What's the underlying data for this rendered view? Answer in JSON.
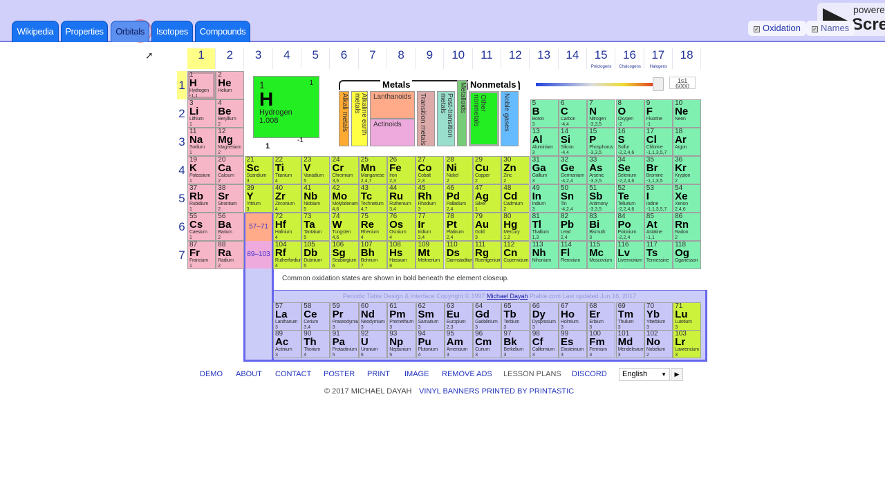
{
  "tabs": [
    {
      "label": "Wikipedia"
    },
    {
      "label": "Properties"
    },
    {
      "label": "Orbitals",
      "active": true
    },
    {
      "label": "Isotopes"
    },
    {
      "label": "Compounds"
    }
  ],
  "toggles": [
    {
      "label": "Oxidation",
      "checked": true
    },
    {
      "label": "Names",
      "checked": true
    }
  ],
  "watermark": {
    "line1": "powere",
    "line2": "Scre"
  },
  "groups": [
    "1",
    "2",
    "3",
    "4",
    "5",
    "6",
    "7",
    "8",
    "9",
    "10",
    "11",
    "12",
    "13",
    "14",
    "15",
    "16",
    "17",
    "18"
  ],
  "group_subtitles": {
    "15": "Pnictogens",
    "16": "Chalcogens",
    "17": "Halogens"
  },
  "periods": [
    "1",
    "2",
    "3",
    "4",
    "5",
    "6",
    "7"
  ],
  "highlight": {
    "group": "1",
    "period": "1"
  },
  "closeup": {
    "number": "1",
    "electrons": "1",
    "symbol": "H",
    "name": "Hydrogen",
    "weight": "1.008",
    "ox_common": "1",
    "ox_other": "-1"
  },
  "legend": {
    "metals": "Metals",
    "nonmetals": "Nonmetals",
    "categories": [
      "Alkali metals",
      "Alkaline earth metals",
      "Lanthanoids",
      "Actinoids",
      "Transition metals",
      "Post-transition metals",
      "Metalloids",
      "Other nonmetals",
      "Noble gases"
    ],
    "colors": {
      "alkali": "#ffaa33",
      "alkaline": "#ffff44",
      "lanthanoids": "#ffaa88",
      "actinoids": "#eeaadd",
      "transition": "#ddaaaa",
      "post": "#99ddcc",
      "metalloids": "#77cc77",
      "other": "#22ee22",
      "noble": "#66bbff"
    }
  },
  "slider": {
    "orbital": "1s1",
    "value": "6000"
  },
  "block_colors": {
    "s": "#f7b6c8",
    "d": "#ccf23c",
    "p": "#7ff0b0",
    "f": "#c8c6f7"
  },
  "elements": [
    [
      "1",
      "H",
      "Hydrogen",
      "-1,1",
      1,
      1,
      "s"
    ],
    [
      "2",
      "He",
      "Helium",
      "",
      1,
      2,
      "s"
    ],
    [
      "3",
      "Li",
      "Lithium",
      "1",
      2,
      1,
      "s"
    ],
    [
      "4",
      "Be",
      "Beryllium",
      "2",
      2,
      2,
      "s"
    ],
    [
      "5",
      "B",
      "Boron",
      "3",
      2,
      13,
      "p"
    ],
    [
      "6",
      "C",
      "Carbon",
      "-4,4",
      2,
      14,
      "p"
    ],
    [
      "7",
      "N",
      "Nitrogen",
      "-3,3,5",
      2,
      15,
      "p"
    ],
    [
      "8",
      "O",
      "Oxygen",
      "-2",
      2,
      16,
      "p"
    ],
    [
      "9",
      "F",
      "Fluorine",
      "-1",
      2,
      17,
      "p"
    ],
    [
      "10",
      "Ne",
      "Neon",
      "",
      2,
      18,
      "p"
    ],
    [
      "11",
      "Na",
      "Sodium",
      "1",
      3,
      1,
      "s"
    ],
    [
      "12",
      "Mg",
      "Magnesium",
      "2",
      3,
      2,
      "s"
    ],
    [
      "13",
      "Al",
      "Aluminium",
      "3",
      3,
      13,
      "p"
    ],
    [
      "14",
      "Si",
      "Silicon",
      "-4,4",
      3,
      14,
      "p"
    ],
    [
      "15",
      "P",
      "Phosphorus",
      "-3,3,5",
      3,
      15,
      "p"
    ],
    [
      "16",
      "S",
      "Sulfur",
      "-2,2,4,6",
      3,
      16,
      "p"
    ],
    [
      "17",
      "Cl",
      "Chlorine",
      "-1,1,3,5,7",
      3,
      17,
      "p"
    ],
    [
      "18",
      "Ar",
      "Argon",
      "",
      3,
      18,
      "p"
    ],
    [
      "19",
      "K",
      "Potassium",
      "1",
      4,
      1,
      "s"
    ],
    [
      "20",
      "Ca",
      "Calcium",
      "2",
      4,
      2,
      "s"
    ],
    [
      "21",
      "Sc",
      "Scandium",
      "3",
      4,
      3,
      "d"
    ],
    [
      "22",
      "Ti",
      "Titanium",
      "4",
      4,
      4,
      "d"
    ],
    [
      "23",
      "V",
      "Vanadium",
      "5",
      4,
      5,
      "d"
    ],
    [
      "24",
      "Cr",
      "Chromium",
      "3,6",
      4,
      6,
      "d"
    ],
    [
      "25",
      "Mn",
      "Manganese",
      "2,4,7",
      4,
      7,
      "d"
    ],
    [
      "26",
      "Fe",
      "Iron",
      "2,3",
      4,
      8,
      "d"
    ],
    [
      "27",
      "Co",
      "Cobalt",
      "2,3",
      4,
      9,
      "d"
    ],
    [
      "28",
      "Ni",
      "Nickel",
      "2",
      4,
      10,
      "d"
    ],
    [
      "29",
      "Cu",
      "Copper",
      "2",
      4,
      11,
      "d"
    ],
    [
      "30",
      "Zn",
      "Zinc",
      "2",
      4,
      12,
      "d"
    ],
    [
      "31",
      "Ga",
      "Gallium",
      "3",
      4,
      13,
      "p"
    ],
    [
      "32",
      "Ge",
      "Germanium",
      "-4,2,4",
      4,
      14,
      "p"
    ],
    [
      "33",
      "As",
      "Arsenic",
      "-3,3,5",
      4,
      15,
      "p"
    ],
    [
      "34",
      "Se",
      "Selenium",
      "-2,2,4,6",
      4,
      16,
      "p"
    ],
    [
      "35",
      "Br",
      "Bromine",
      "-1,1,3,5",
      4,
      17,
      "p"
    ],
    [
      "36",
      "Kr",
      "Krypton",
      "2",
      4,
      18,
      "p"
    ],
    [
      "37",
      "Rb",
      "Rubidium",
      "1",
      5,
      1,
      "s"
    ],
    [
      "38",
      "Sr",
      "Strontium",
      "2",
      5,
      2,
      "s"
    ],
    [
      "39",
      "Y",
      "Yttrium",
      "3",
      5,
      3,
      "d"
    ],
    [
      "40",
      "Zr",
      "Zirconium",
      "4",
      5,
      4,
      "d"
    ],
    [
      "41",
      "Nb",
      "Niobium",
      "5",
      5,
      5,
      "d"
    ],
    [
      "42",
      "Mo",
      "Molybdenum",
      "4,6",
      5,
      6,
      "d"
    ],
    [
      "43",
      "Tc",
      "Technetium",
      "4,7",
      5,
      7,
      "d"
    ],
    [
      "44",
      "Ru",
      "Ruthenium",
      "3,4",
      5,
      8,
      "d"
    ],
    [
      "45",
      "Rh",
      "Rhodium",
      "3",
      5,
      9,
      "d"
    ],
    [
      "46",
      "Pd",
      "Palladium",
      "2,4",
      5,
      10,
      "d"
    ],
    [
      "47",
      "Ag",
      "Silver",
      "1",
      5,
      11,
      "d"
    ],
    [
      "48",
      "Cd",
      "Cadmium",
      "2",
      5,
      12,
      "d"
    ],
    [
      "49",
      "In",
      "Indium",
      "3",
      5,
      13,
      "p"
    ],
    [
      "50",
      "Sn",
      "Tin",
      "-4,2,4",
      5,
      14,
      "p"
    ],
    [
      "51",
      "Sb",
      "Antimony",
      "-3,3,5",
      5,
      15,
      "p"
    ],
    [
      "52",
      "Te",
      "Tellurium",
      "-2,2,4,6",
      5,
      16,
      "p"
    ],
    [
      "53",
      "I",
      "Iodine",
      "-1,1,3,5,7",
      5,
      17,
      "p"
    ],
    [
      "54",
      "Xe",
      "Xenon",
      "2,4,6",
      5,
      18,
      "p"
    ],
    [
      "55",
      "Cs",
      "Caesium",
      "1",
      6,
      1,
      "s"
    ],
    [
      "56",
      "Ba",
      "Barium",
      "2",
      6,
      2,
      "s"
    ],
    [
      "72",
      "Hf",
      "Hafnium",
      "4",
      6,
      4,
      "d"
    ],
    [
      "73",
      "Ta",
      "Tantalum",
      "5",
      6,
      5,
      "d"
    ],
    [
      "74",
      "W",
      "Tungsten",
      "4,6",
      6,
      6,
      "d"
    ],
    [
      "75",
      "Re",
      "Rhenium",
      "4",
      6,
      7,
      "d"
    ],
    [
      "76",
      "Os",
      "Osmium",
      "4",
      6,
      8,
      "d"
    ],
    [
      "77",
      "Ir",
      "Iridium",
      "3,4",
      6,
      9,
      "d"
    ],
    [
      "78",
      "Pt",
      "Platinum",
      "2,4",
      6,
      10,
      "d"
    ],
    [
      "79",
      "Au",
      "Gold",
      "3",
      6,
      11,
      "d"
    ],
    [
      "80",
      "Hg",
      "Mercury",
      "1,2",
      6,
      12,
      "d"
    ],
    [
      "81",
      "Tl",
      "Thallium",
      "1,3",
      6,
      13,
      "p"
    ],
    [
      "82",
      "Pb",
      "Lead",
      "2,4",
      6,
      14,
      "p"
    ],
    [
      "83",
      "Bi",
      "Bismuth",
      "3",
      6,
      15,
      "p"
    ],
    [
      "84",
      "Po",
      "Polonium",
      "-2,2,4",
      6,
      16,
      "p"
    ],
    [
      "85",
      "At",
      "Astatine",
      "-1,1",
      6,
      17,
      "p"
    ],
    [
      "86",
      "Rn",
      "Radon",
      "2",
      6,
      18,
      "p"
    ],
    [
      "87",
      "Fr",
      "Francium",
      "1",
      7,
      1,
      "s"
    ],
    [
      "88",
      "Ra",
      "Radium",
      "2",
      7,
      2,
      "s"
    ],
    [
      "104",
      "Rf",
      "Rutherfordium",
      "4",
      7,
      4,
      "d"
    ],
    [
      "105",
      "Db",
      "Dubnium",
      "5",
      7,
      5,
      "d"
    ],
    [
      "106",
      "Sg",
      "Seaborgium",
      "6",
      7,
      6,
      "d"
    ],
    [
      "107",
      "Bh",
      "Bohrium",
      "7",
      7,
      7,
      "d"
    ],
    [
      "108",
      "Hs",
      "Hassium",
      "8",
      7,
      8,
      "d"
    ],
    [
      "109",
      "Mt",
      "Meitnerium",
      "",
      7,
      9,
      "d"
    ],
    [
      "110",
      "Ds",
      "Darmstadtium",
      "",
      7,
      10,
      "d"
    ],
    [
      "111",
      "Rg",
      "Roentgenium",
      "",
      7,
      11,
      "d"
    ],
    [
      "112",
      "Cn",
      "Copernicium",
      "",
      7,
      12,
      "d"
    ],
    [
      "113",
      "Nh",
      "Nihonium",
      "",
      7,
      13,
      "p"
    ],
    [
      "114",
      "Fl",
      "Flerovium",
      "",
      7,
      14,
      "p"
    ],
    [
      "115",
      "Mc",
      "Moscovium",
      "",
      7,
      15,
      "p"
    ],
    [
      "116",
      "Lv",
      "Livermorium",
      "",
      7,
      16,
      "p"
    ],
    [
      "117",
      "Ts",
      "Tennessine",
      "",
      7,
      17,
      "p"
    ],
    [
      "118",
      "Og",
      "Oganesson",
      "",
      7,
      18,
      "p"
    ]
  ],
  "lanthanides": [
    [
      "57",
      "La",
      "Lanthanum",
      "3"
    ],
    [
      "58",
      "Ce",
      "Cerium",
      "3,4"
    ],
    [
      "59",
      "Pr",
      "Praseodymium",
      "3"
    ],
    [
      "60",
      "Nd",
      "Neodymium",
      "3"
    ],
    [
      "61",
      "Pm",
      "Promethium",
      "3"
    ],
    [
      "62",
      "Sm",
      "Samarium",
      "3"
    ],
    [
      "63",
      "Eu",
      "Europium",
      "2,3"
    ],
    [
      "64",
      "Gd",
      "Gadolinium",
      "3"
    ],
    [
      "65",
      "Tb",
      "Terbium",
      "3"
    ],
    [
      "66",
      "Dy",
      "Dysprosium",
      "3"
    ],
    [
      "67",
      "Ho",
      "Holmium",
      "3"
    ],
    [
      "68",
      "Er",
      "Erbium",
      "3"
    ],
    [
      "69",
      "Tm",
      "Thulium",
      "3"
    ],
    [
      "70",
      "Yb",
      "Ytterbium",
      "3"
    ],
    [
      "71",
      "Lu",
      "Lutetium",
      "3"
    ]
  ],
  "actinides": [
    [
      "89",
      "Ac",
      "Actinium",
      "3"
    ],
    [
      "90",
      "Th",
      "Thorium",
      "4"
    ],
    [
      "91",
      "Pa",
      "Protactinium",
      "5"
    ],
    [
      "92",
      "U",
      "Uranium",
      "6"
    ],
    [
      "93",
      "Np",
      "Neptunium",
      "5"
    ],
    [
      "94",
      "Pu",
      "Plutonium",
      "4"
    ],
    [
      "95",
      "Am",
      "Americium",
      "3"
    ],
    [
      "96",
      "Cm",
      "Curium",
      "3"
    ],
    [
      "97",
      "Bk",
      "Berkelium",
      "3"
    ],
    [
      "98",
      "Cf",
      "Californium",
      "3"
    ],
    [
      "99",
      "Es",
      "Einsteinium",
      "3"
    ],
    [
      "100",
      "Fm",
      "Fermium",
      "3"
    ],
    [
      "101",
      "Md",
      "Mendelevium",
      "3"
    ],
    [
      "102",
      "No",
      "Nobelium",
      "2"
    ],
    [
      "103",
      "Lr",
      "Lawrencium",
      "3"
    ]
  ],
  "ranges": {
    "lanthanides": "57–71",
    "actinides": "89–103"
  },
  "note": "Common oxidation states are shown in bold beneath the element closeup.",
  "copyright": {
    "prefix": "Periodic Table Design & Interface Copyright © 1997",
    "author": "Michael Dayah",
    "suffix": "Ptable.com Last updated Jun 16, 2017"
  },
  "footer": {
    "links": [
      "DEMO",
      "ABOUT",
      "CONTACT",
      "POSTER",
      "PRINT",
      "IMAGE",
      "REMOVE ADS",
      "LESSON PLANS",
      "DISCORD"
    ],
    "language": "English",
    "copyright": "© 2017 MICHAEL DAYAH",
    "sponsor": "VINYL BANNERS PRINTED BY PRINTASTIC"
  }
}
